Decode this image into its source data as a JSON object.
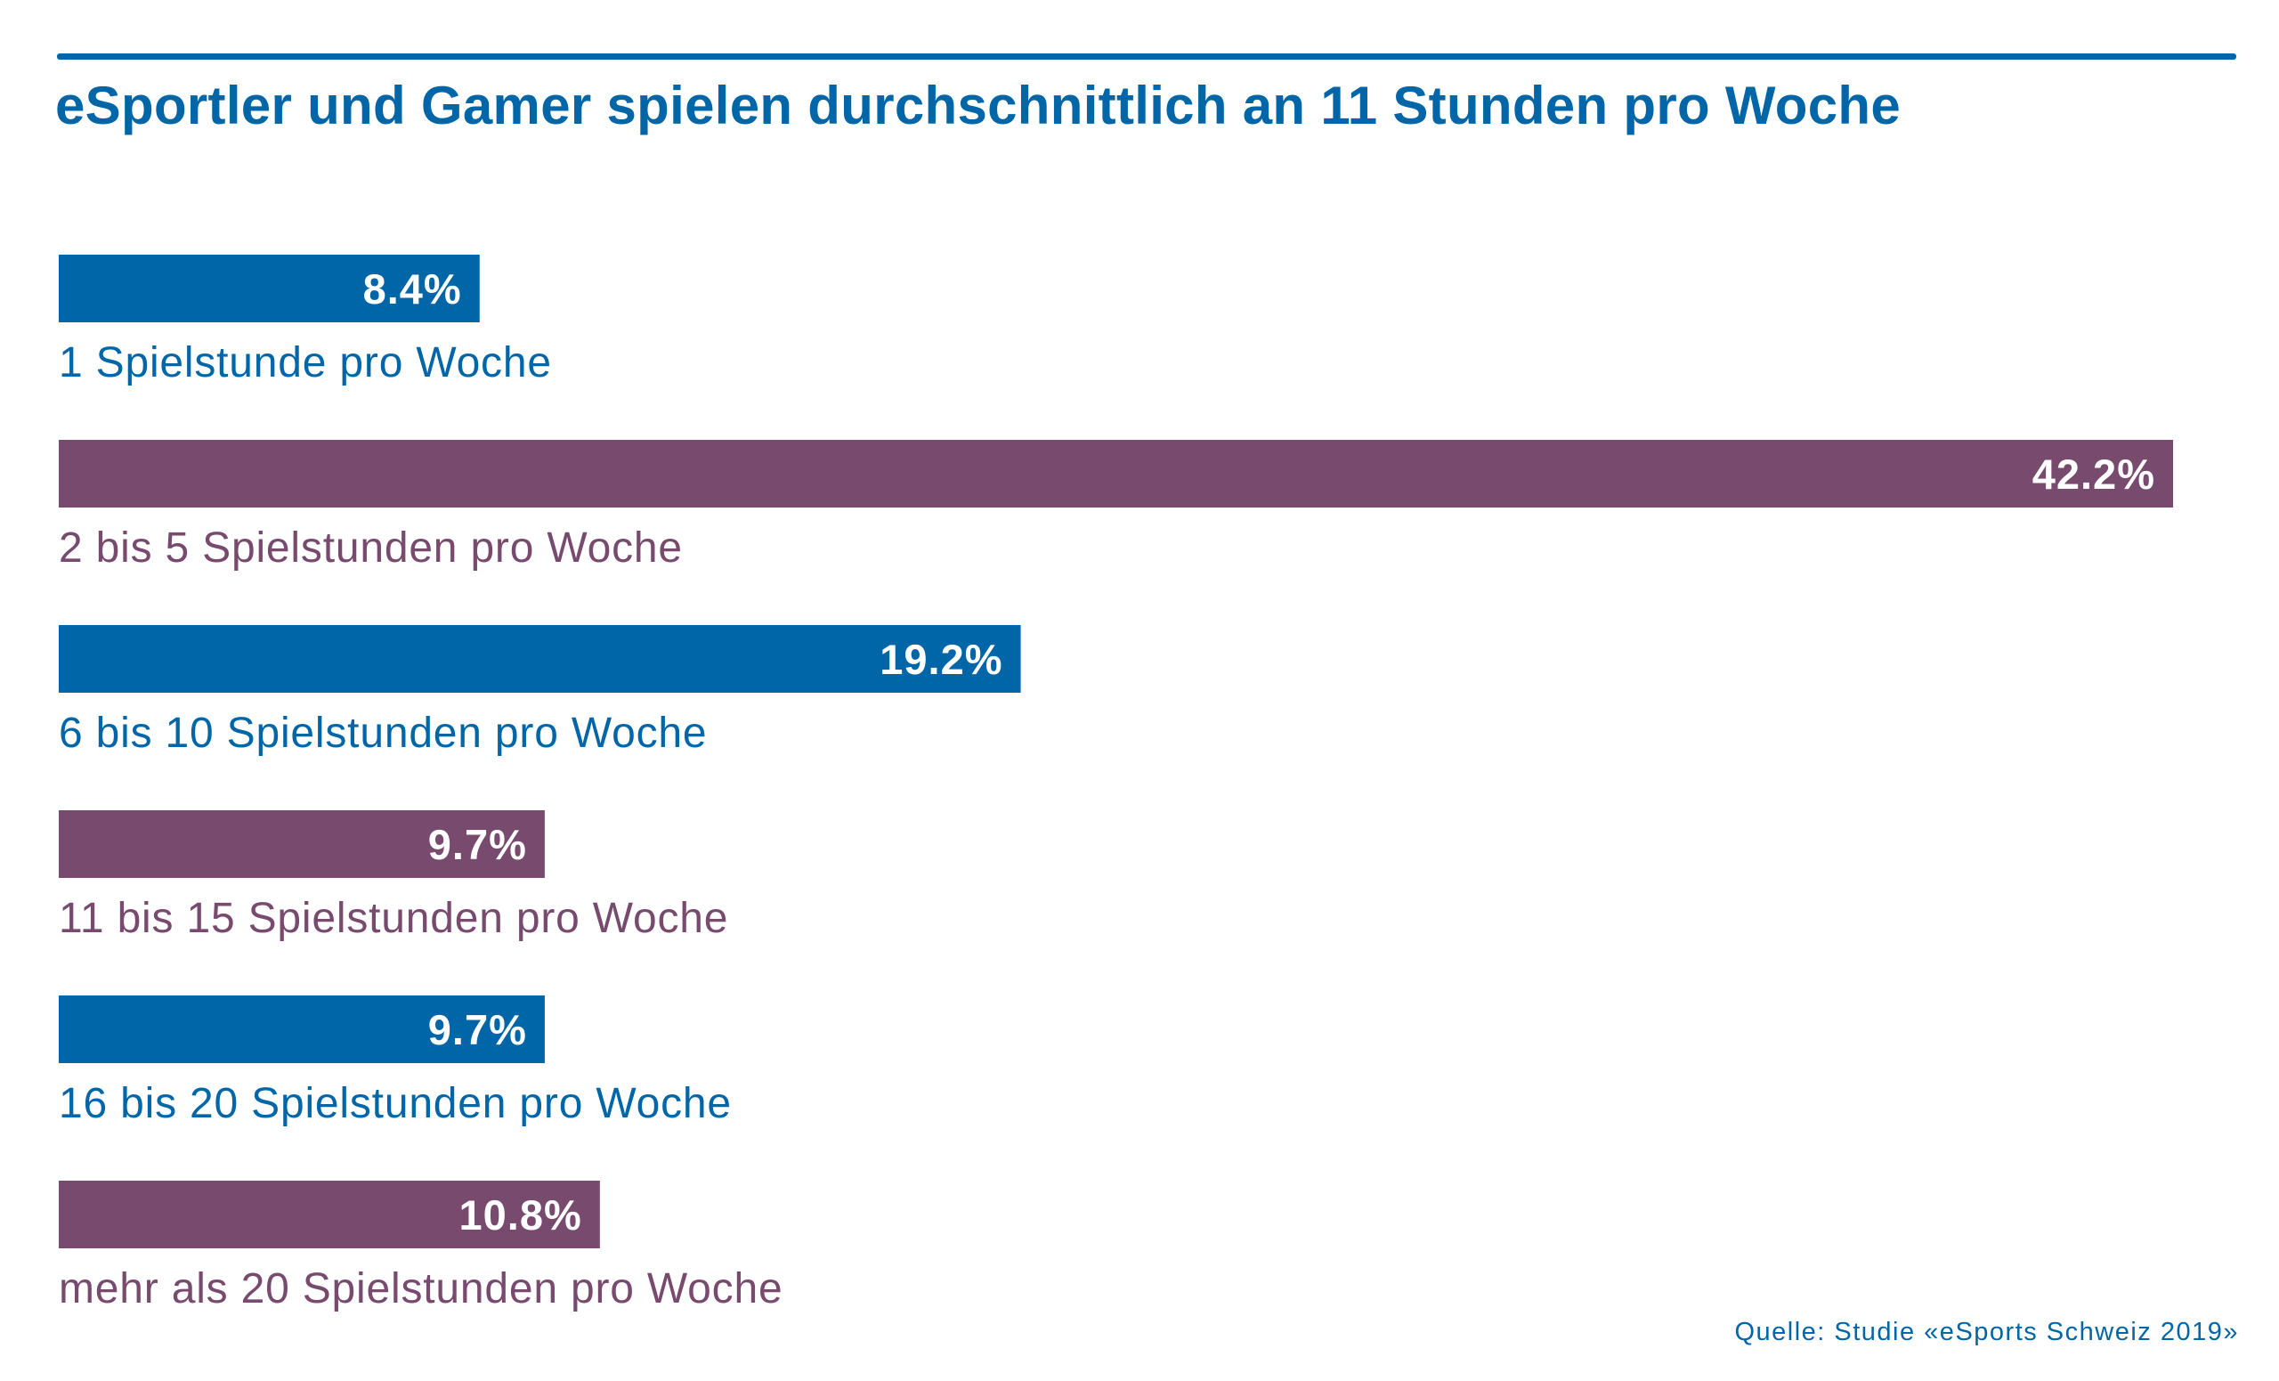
{
  "header": {
    "title": "eSportler und Gamer spielen durchschnittlich an 11 Stunden pro Woche"
  },
  "footer": {
    "source": "Quelle: Studie «eSports Schweiz 2019»"
  },
  "colors": {
    "blue": "#0066a8",
    "purple": "#774a6e",
    "value_text": "#ffffff"
  },
  "chart_data": {
    "type": "bar",
    "orientation": "horizontal",
    "title": "eSportler und Gamer spielen durchschnittlich an 11 Stunden pro Woche",
    "categories": [
      "1 Spielstunde pro Woche",
      "2 bis 5 Spielstunden pro Woche",
      "6 bis 10 Spielstunden pro Woche",
      "11 bis 15 Spielstunden pro Woche",
      "16 bis 20 Spielstunden pro Woche",
      "mehr als 20 Spielstunden pro Woche"
    ],
    "values": [
      8.4,
      42.2,
      19.2,
      9.7,
      9.7,
      10.8
    ],
    "value_labels": [
      "8.4%",
      "42.2%",
      "19.2%",
      "9.7%",
      "9.7%",
      "10.8%"
    ],
    "bar_colors": [
      "#0066a8",
      "#774a6e",
      "#0066a8",
      "#774a6e",
      "#0066a8",
      "#774a6e"
    ],
    "unit": "%",
    "xlim": [
      0,
      42.2
    ],
    "grid": false,
    "legend": "none"
  }
}
